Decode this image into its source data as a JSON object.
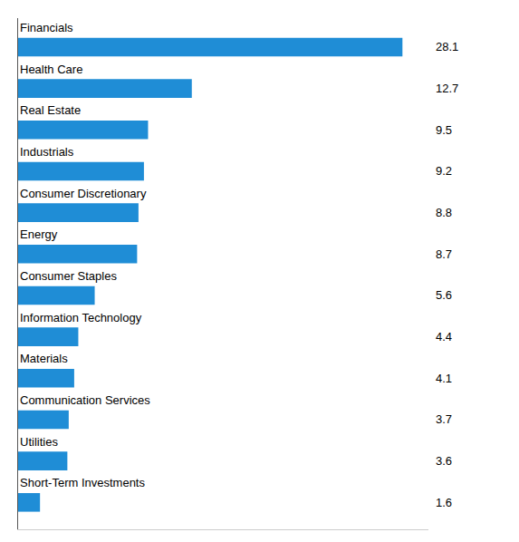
{
  "chart_data": {
    "type": "bar",
    "orientation": "horizontal",
    "categories": [
      "Financials",
      "Health Care",
      "Real Estate",
      "Industrials",
      "Consumer Discretionary",
      "Energy",
      "Consumer Staples",
      "Information Technology",
      "Materials",
      "Communication Services",
      "Utilities",
      "Short-Term Investments"
    ],
    "values": [
      28.1,
      12.7,
      9.5,
      9.2,
      8.8,
      8.7,
      5.6,
      4.4,
      4.1,
      3.7,
      3.6,
      1.6
    ],
    "color": "#1F8DD6",
    "xlim": [
      0,
      30
    ],
    "data_labels": true,
    "tick_labels": false,
    "grid": false
  }
}
